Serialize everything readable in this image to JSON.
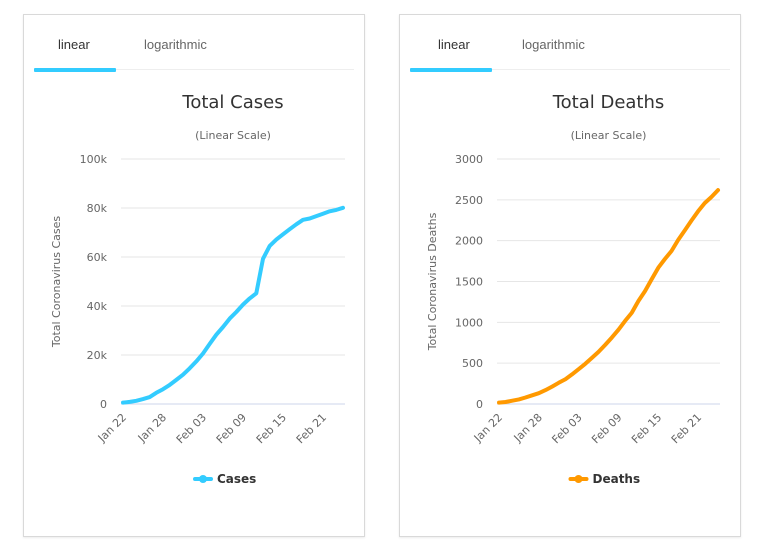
{
  "panels": [
    {
      "tabs": [
        {
          "label": "linear",
          "active": true
        },
        {
          "label": "logarithmic",
          "active": false
        }
      ],
      "accent_color": "#33ccff"
    },
    {
      "tabs": [
        {
          "label": "linear",
          "active": true
        },
        {
          "label": "logarithmic",
          "active": false
        }
      ],
      "accent_color": "#33ccff"
    }
  ],
  "chart_data": [
    {
      "type": "line",
      "title": "Total Cases",
      "subtitle": "(Linear Scale)",
      "xlabel": "",
      "ylabel": "Total Coronavirus Cases",
      "ylim": [
        0,
        100000
      ],
      "yticks": [
        0,
        20000,
        40000,
        60000,
        80000,
        100000
      ],
      "ytick_labels": [
        "0",
        "20k",
        "40k",
        "60k",
        "80k",
        "100k"
      ],
      "x_tick_labels": [
        "Jan 22",
        "Jan 28",
        "Feb 03",
        "Feb 09",
        "Feb 15",
        "Feb 21"
      ],
      "x_tick_every": 6,
      "x": [
        "Jan 22",
        "Jan 23",
        "Jan 24",
        "Jan 25",
        "Jan 26",
        "Jan 27",
        "Jan 28",
        "Jan 29",
        "Jan 30",
        "Jan 31",
        "Feb 01",
        "Feb 02",
        "Feb 03",
        "Feb 04",
        "Feb 05",
        "Feb 06",
        "Feb 07",
        "Feb 08",
        "Feb 09",
        "Feb 10",
        "Feb 11",
        "Feb 12",
        "Feb 13",
        "Feb 14",
        "Feb 15",
        "Feb 16",
        "Feb 17",
        "Feb 18",
        "Feb 19",
        "Feb 20",
        "Feb 21",
        "Feb 22",
        "Feb 23",
        "Feb 24"
      ],
      "grid": true,
      "legend": "bottom",
      "series": [
        {
          "name": "Cases",
          "color": "#33ccff",
          "values": [
            580,
            845,
            1317,
            2015,
            2800,
            4581,
            6058,
            7813,
            9823,
            11950,
            14553,
            17391,
            20630,
            24545,
            28266,
            31439,
            34876,
            37552,
            40553,
            43099,
            45170,
            59283,
            64543,
            67103,
            69265,
            71332,
            73327,
            75184,
            75700,
            76677,
            77673,
            78651,
            79205,
            80087
          ]
        }
      ]
    },
    {
      "type": "line",
      "title": "Total Deaths",
      "subtitle": "(Linear Scale)",
      "xlabel": "",
      "ylabel": "Total Coronavirus Deaths",
      "ylim": [
        0,
        3000
      ],
      "yticks": [
        0,
        500,
        1000,
        1500,
        2000,
        2500,
        3000
      ],
      "ytick_labels": [
        "0",
        "500",
        "1000",
        "1500",
        "2000",
        "2500",
        "3000"
      ],
      "x_tick_labels": [
        "Jan 22",
        "Jan 28",
        "Feb 03",
        "Feb 09",
        "Feb 15",
        "Feb 21"
      ],
      "x_tick_every": 6,
      "x": [
        "Jan 22",
        "Jan 23",
        "Jan 24",
        "Jan 25",
        "Jan 26",
        "Jan 27",
        "Jan 28",
        "Jan 29",
        "Jan 30",
        "Jan 31",
        "Feb 01",
        "Feb 02",
        "Feb 03",
        "Feb 04",
        "Feb 05",
        "Feb 06",
        "Feb 07",
        "Feb 08",
        "Feb 09",
        "Feb 10",
        "Feb 11",
        "Feb 12",
        "Feb 13",
        "Feb 14",
        "Feb 15",
        "Feb 16",
        "Feb 17",
        "Feb 18",
        "Feb 19",
        "Feb 20",
        "Feb 21",
        "Feb 22",
        "Feb 23",
        "Feb 24"
      ],
      "grid": true,
      "legend": "bottom",
      "series": [
        {
          "name": "Deaths",
          "color": "#ff9900",
          "values": [
            17,
            25,
            41,
            56,
            80,
            106,
            132,
            170,
            213,
            259,
            304,
            362,
            426,
            492,
            565,
            638,
            724,
            813,
            910,
            1018,
            1115,
            1261,
            1383,
            1526,
            1669,
            1775,
            1873,
            2009,
            2126,
            2247,
            2360,
            2460,
            2535,
            2619
          ]
        }
      ]
    }
  ]
}
